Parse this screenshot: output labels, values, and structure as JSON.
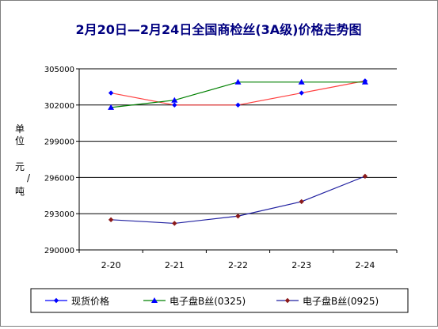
{
  "chart_data": {
    "type": "line",
    "title": "2月20日—2月24日全国商检丝(3A级)价格走势图",
    "ylabel": [
      "单",
      "位",
      "元",
      "/",
      "吨"
    ],
    "categories": [
      "2-20",
      "2-21",
      "2-22",
      "2-23",
      "2-24"
    ],
    "ylim": [
      290000,
      305000
    ],
    "yticks": [
      "305000",
      "302000",
      "299000",
      "296000",
      "293000",
      "290000"
    ],
    "ytick_values": [
      305000,
      302000,
      299000,
      296000,
      293000,
      290000
    ],
    "grid": true,
    "legend_position": "bottom",
    "series": [
      {
        "name": "现货价格",
        "color": "#0000ff",
        "marker": "diamond",
        "marker_color": "#0000ff",
        "values": [
          303000,
          302000,
          302000,
          303000,
          304000
        ]
      },
      {
        "name": "电子盘B丝(0325)",
        "color": "#008000",
        "marker": "triangle",
        "marker_color": "#0000ff",
        "values": [
          301800,
          302400,
          303900,
          303900,
          303900
        ]
      },
      {
        "name": "电子盘B丝(0925)",
        "color": "#2020a0",
        "marker": "diamond",
        "marker_color": "#8b1a1a",
        "values": [
          292500,
          292200,
          292800,
          294000,
          296100
        ]
      }
    ]
  },
  "colors": {
    "title": "#000080",
    "line_spot": "#ff4040"
  }
}
